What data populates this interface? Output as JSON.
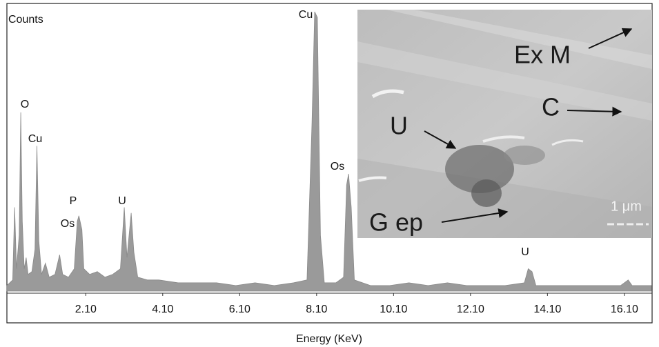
{
  "chart_data": {
    "type": "area",
    "y_label": "Counts",
    "x_label": "Energy (KeV)",
    "color": "#9a9a9a",
    "xlim": [
      0.05,
      16.82
    ],
    "ylim": [
      0,
      103
    ],
    "xticks": [
      {
        "value": 2.1,
        "label": "2.10"
      },
      {
        "value": 4.1,
        "label": "4.10"
      },
      {
        "value": 6.1,
        "label": "6.10"
      },
      {
        "value": 8.1,
        "label": "8.10"
      },
      {
        "value": 10.1,
        "label": "10.10"
      },
      {
        "value": 12.1,
        "label": "12.10"
      },
      {
        "value": 14.1,
        "label": "14.10"
      },
      {
        "value": 16.1,
        "label": "16.10"
      }
    ],
    "x": [
      0.05,
      0.2,
      0.25,
      0.3,
      0.37,
      0.41,
      0.45,
      0.5,
      0.55,
      0.6,
      0.7,
      0.78,
      0.83,
      0.88,
      0.95,
      1.05,
      1.15,
      1.3,
      1.42,
      1.5,
      1.65,
      1.8,
      1.88,
      1.92,
      2.0,
      2.05,
      2.2,
      2.4,
      2.6,
      2.8,
      3.0,
      3.1,
      3.17,
      3.28,
      3.35,
      3.45,
      3.7,
      4.0,
      4.5,
      5.0,
      5.5,
      6.0,
      6.5,
      7.0,
      7.5,
      7.85,
      7.98,
      8.05,
      8.12,
      8.2,
      8.3,
      8.6,
      8.8,
      8.88,
      8.93,
      9.0,
      9.08,
      9.5,
      10.0,
      10.5,
      11.0,
      11.5,
      12.0,
      12.5,
      13.0,
      13.5,
      13.6,
      13.7,
      13.8,
      14.5,
      15.0,
      15.5,
      16.0,
      16.2,
      16.3,
      16.8
    ],
    "values": [
      2,
      4,
      30,
      8,
      20,
      64,
      25,
      8,
      12,
      6,
      7,
      15,
      52,
      18,
      6,
      10,
      5,
      6,
      13,
      6,
      5,
      8,
      25,
      27,
      22,
      8,
      6,
      7,
      5,
      6,
      8,
      30,
      12,
      28,
      14,
      5,
      4,
      4,
      3,
      3,
      3,
      2,
      3,
      2,
      3,
      4,
      60,
      100,
      98,
      20,
      3,
      3,
      5,
      38,
      42,
      30,
      4,
      2,
      2,
      3,
      2,
      3,
      2,
      2,
      2,
      3,
      8,
      7,
      2,
      2,
      2,
      2,
      2,
      4,
      2,
      2
    ],
    "annotations": [
      "O",
      "Cu",
      "P",
      "Os",
      "U",
      "Cu",
      "Os",
      "U"
    ],
    "inset": {
      "labels": [
        "Ex M",
        "C",
        "U",
        "G ep",
        "1 μm"
      ]
    }
  }
}
